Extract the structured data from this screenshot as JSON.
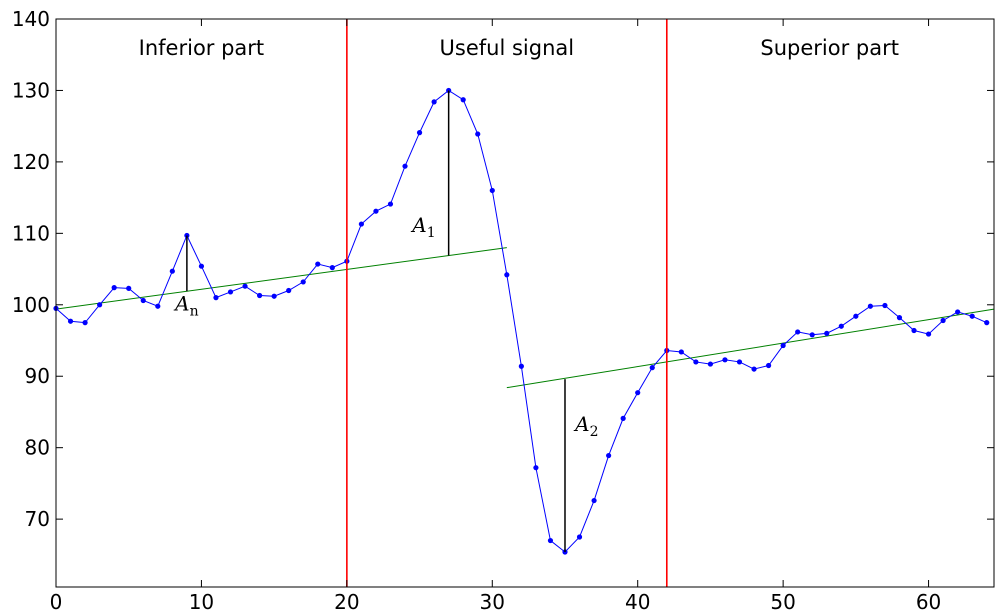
{
  "chart_data": {
    "type": "line",
    "xlim": [
      0,
      64.5
    ],
    "ylim": [
      60.5,
      140
    ],
    "x_ticks": [
      0,
      10,
      20,
      30,
      40,
      50,
      60
    ],
    "y_ticks": [
      70,
      80,
      90,
      100,
      110,
      120,
      130,
      140
    ],
    "grid": false,
    "series": [
      {
        "color": "#0000ff",
        "marker": "circle",
        "x": [
          0,
          1,
          2,
          3,
          4,
          5,
          6,
          7,
          8,
          9,
          10,
          11,
          12,
          13,
          14,
          15,
          16,
          17,
          18,
          19,
          20,
          21,
          22,
          23,
          24,
          25,
          26,
          27,
          28,
          29,
          30,
          31,
          32,
          33,
          34,
          35,
          36,
          37,
          38,
          39,
          40,
          41,
          42,
          43,
          44,
          45,
          46,
          47,
          48,
          49,
          50,
          51,
          52,
          53,
          54,
          55,
          56,
          57,
          58,
          59,
          60,
          61,
          62,
          63,
          64
        ],
        "y": [
          99.5,
          97.7,
          97.5,
          100.0,
          102.4,
          102.3,
          100.6,
          99.8,
          104.7,
          109.7,
          105.4,
          101.0,
          101.8,
          102.6,
          101.3,
          101.2,
          102.0,
          103.2,
          105.7,
          105.2,
          106.1,
          111.3,
          113.1,
          114.1,
          119.4,
          124.1,
          128.4,
          130.0,
          128.7,
          123.9,
          116.0,
          104.2,
          91.4,
          77.2,
          67.0,
          65.4,
          67.5,
          72.6,
          78.9,
          84.1,
          87.7,
          91.2,
          93.6,
          93.4,
          92.0,
          91.7,
          92.3,
          92.0,
          91.0,
          91.5,
          94.3,
          96.2,
          95.8,
          96.0,
          97.0,
          98.4,
          99.8,
          99.9,
          98.2,
          96.4,
          95.9,
          97.8,
          99.0,
          98.4,
          97.5
        ]
      }
    ],
    "trend_lines": [
      {
        "color": "#008000",
        "x": [
          0,
          31
        ],
        "y": [
          99.4,
          108.0
        ]
      },
      {
        "color": "#008000",
        "x": [
          31,
          64.5
        ],
        "y": [
          88.4,
          99.4
        ]
      }
    ],
    "boundaries": {
      "color": "#ff0000",
      "x": [
        20,
        42
      ]
    },
    "regions": [
      {
        "label": "Inferior part",
        "x_center": 10
      },
      {
        "label": "Useful signal",
        "x_center": 31
      },
      {
        "label": "Superior part",
        "x_center": 53.2
      }
    ],
    "amplitudes": [
      {
        "symbol": "A",
        "subscript": "n",
        "x": 9,
        "y_top": 109.7,
        "y_bottom": 101.9,
        "label_x": 9,
        "label_y": 99.2
      },
      {
        "symbol": "A",
        "subscript": "1",
        "x": 27,
        "y_top": 130.0,
        "y_bottom": 106.9,
        "label_x": 25.3,
        "label_y": 110.2
      },
      {
        "symbol": "A",
        "subscript": "2",
        "x": 35,
        "y_top": 89.6,
        "y_bottom": 65.4,
        "label_x": 36.5,
        "label_y": 82.3
      }
    ]
  }
}
